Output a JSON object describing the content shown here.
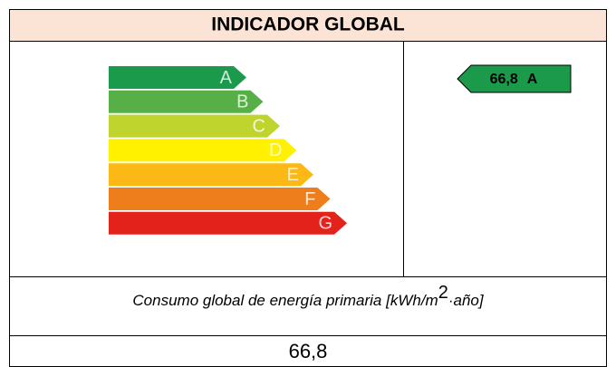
{
  "header": {
    "title": "INDICADOR GLOBAL"
  },
  "scale": {
    "classes": [
      {
        "letter": "A",
        "color": "#1a9a4a"
      },
      {
        "letter": "B",
        "color": "#56b047"
      },
      {
        "letter": "C",
        "color": "#bfd42d"
      },
      {
        "letter": "D",
        "color": "#fff100"
      },
      {
        "letter": "E",
        "color": "#fcb815"
      },
      {
        "letter": "F",
        "color": "#ee7e1b"
      },
      {
        "letter": "G",
        "color": "#e3221b"
      }
    ]
  },
  "rating": {
    "value": "66,8",
    "class": "A",
    "color": "#1a9a4a"
  },
  "description": {
    "before": "Consumo global de energía primaria [kWh/m",
    "superscript": "2",
    "after": "·año]"
  }
}
